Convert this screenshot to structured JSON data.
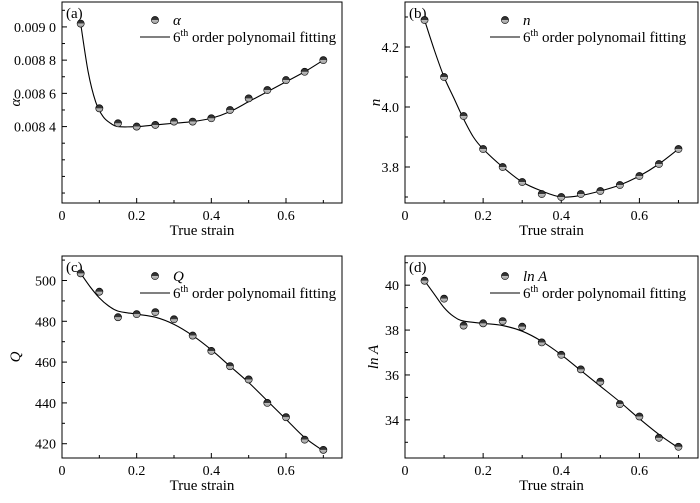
{
  "chart_data": [
    {
      "type": "scatter",
      "panel_label": "(a)",
      "xlabel": "True strain",
      "ylabel": "α",
      "legend": {
        "marker_label": "α",
        "line_label_pre": "6",
        "line_label_sup": "th",
        "line_label_post": " order polynomail fitting"
      },
      "xlim": [
        0,
        0.75
      ],
      "ylim": [
        0.00794,
        0.00915
      ],
      "xticks": [
        0,
        0.2,
        0.4,
        0.6
      ],
      "xtick_labels": [
        "0",
        "0.2",
        "0.4",
        "0.6"
      ],
      "yticks": [
        0.0084,
        0.0086,
        0.0088,
        0.009
      ],
      "ytick_labels": [
        "0.008 4",
        "0.008 6",
        "0.008 8",
        "0.009 0"
      ],
      "x": [
        0.05,
        0.1,
        0.15,
        0.2,
        0.25,
        0.3,
        0.35,
        0.4,
        0.45,
        0.5,
        0.55,
        0.6,
        0.65,
        0.7
      ],
      "values": [
        0.00902,
        0.00851,
        0.00842,
        0.0084,
        0.00841,
        0.00843,
        0.00843,
        0.00845,
        0.0085,
        0.00857,
        0.00862,
        0.00868,
        0.00873,
        0.0088
      ],
      "fit": [
        [
          0.05,
          0.00902
        ],
        [
          0.07,
          0.00873
        ],
        [
          0.09,
          0.00855
        ],
        [
          0.11,
          0.00846
        ],
        [
          0.13,
          0.00842
        ],
        [
          0.15,
          0.0084
        ],
        [
          0.2,
          0.0084
        ],
        [
          0.25,
          0.00841
        ],
        [
          0.3,
          0.00842
        ],
        [
          0.35,
          0.00843
        ],
        [
          0.4,
          0.00845
        ],
        [
          0.45,
          0.00849
        ],
        [
          0.5,
          0.00855
        ],
        [
          0.55,
          0.00861
        ],
        [
          0.6,
          0.00867
        ],
        [
          0.65,
          0.00873
        ],
        [
          0.7,
          0.0088
        ]
      ]
    },
    {
      "type": "scatter",
      "panel_label": "(b)",
      "xlabel": "True strain",
      "ylabel": "n",
      "legend": {
        "marker_label": "n",
        "line_label_pre": "6",
        "line_label_sup": "th",
        "line_label_post": " order polynomail fitting"
      },
      "xlim": [
        0,
        0.75
      ],
      "ylim": [
        3.68,
        4.35
      ],
      "xticks": [
        0,
        0.2,
        0.4,
        0.6
      ],
      "xtick_labels": [
        "0",
        "0.2",
        "0.4",
        "0.6"
      ],
      "yticks": [
        3.8,
        4.0,
        4.2
      ],
      "ytick_labels": [
        "3.8",
        "4.0",
        "4.2"
      ],
      "x": [
        0.05,
        0.1,
        0.15,
        0.2,
        0.25,
        0.3,
        0.35,
        0.4,
        0.45,
        0.5,
        0.55,
        0.6,
        0.65,
        0.7
      ],
      "values": [
        4.29,
        4.1,
        3.97,
        3.86,
        3.8,
        3.75,
        3.71,
        3.7,
        3.71,
        3.72,
        3.74,
        3.77,
        3.81,
        3.86
      ],
      "fit": [
        [
          0.05,
          4.29
        ],
        [
          0.075,
          4.19
        ],
        [
          0.1,
          4.1
        ],
        [
          0.125,
          4.03
        ],
        [
          0.15,
          3.96
        ],
        [
          0.175,
          3.9
        ],
        [
          0.2,
          3.86
        ],
        [
          0.25,
          3.8
        ],
        [
          0.3,
          3.75
        ],
        [
          0.35,
          3.72
        ],
        [
          0.4,
          3.7
        ],
        [
          0.45,
          3.705
        ],
        [
          0.5,
          3.72
        ],
        [
          0.55,
          3.74
        ],
        [
          0.6,
          3.77
        ],
        [
          0.65,
          3.81
        ],
        [
          0.7,
          3.86
        ]
      ]
    },
    {
      "type": "scatter",
      "panel_label": "(c)",
      "xlabel": "True strain",
      "ylabel": "Q",
      "legend": {
        "marker_label": "Q",
        "line_label_pre": "6",
        "line_label_sup": "th",
        "line_label_post": " order polynomail fitting"
      },
      "xlim": [
        0,
        0.75
      ],
      "ylim": [
        413,
        512
      ],
      "xticks": [
        0,
        0.2,
        0.4,
        0.6
      ],
      "xtick_labels": [
        "0",
        "0.2",
        "0.4",
        "0.6"
      ],
      "yticks": [
        420,
        440,
        460,
        480,
        500
      ],
      "ytick_labels": [
        "420",
        "440",
        "460",
        "480",
        "500"
      ],
      "x": [
        0.05,
        0.1,
        0.15,
        0.2,
        0.25,
        0.3,
        0.35,
        0.4,
        0.45,
        0.5,
        0.55,
        0.6,
        0.65,
        0.7
      ],
      "values": [
        503.5,
        494.5,
        482,
        483.5,
        484.5,
        481,
        473,
        465.5,
        458,
        451.5,
        440,
        433,
        422,
        417
      ],
      "fit": [
        [
          0.05,
          503.5
        ],
        [
          0.075,
          497
        ],
        [
          0.1,
          491.5
        ],
        [
          0.125,
          487.5
        ],
        [
          0.15,
          485
        ],
        [
          0.2,
          483.5
        ],
        [
          0.25,
          482
        ],
        [
          0.3,
          478.5
        ],
        [
          0.35,
          473
        ],
        [
          0.4,
          466
        ],
        [
          0.45,
          458
        ],
        [
          0.5,
          450
        ],
        [
          0.55,
          441
        ],
        [
          0.6,
          432
        ],
        [
          0.65,
          423
        ],
        [
          0.7,
          416.5
        ]
      ]
    },
    {
      "type": "scatter",
      "panel_label": "(d)",
      "xlabel": "True strain",
      "ylabel": "ln A",
      "legend": {
        "marker_label": "ln A",
        "line_label_pre": "6",
        "line_label_sup": "th",
        "line_label_post": " order polynomail fitting"
      },
      "xlim": [
        0,
        0.75
      ],
      "ylim": [
        32.3,
        41.3
      ],
      "xticks": [
        0,
        0.2,
        0.4,
        0.6
      ],
      "xtick_labels": [
        "0",
        "0.2",
        "0.4",
        "0.6"
      ],
      "yticks": [
        34,
        36,
        38,
        40
      ],
      "ytick_labels": [
        "34",
        "36",
        "38",
        "40"
      ],
      "x": [
        0.05,
        0.1,
        0.15,
        0.2,
        0.25,
        0.3,
        0.35,
        0.4,
        0.45,
        0.5,
        0.55,
        0.6,
        0.65,
        0.7
      ],
      "values": [
        40.2,
        39.4,
        38.2,
        38.3,
        38.4,
        38.15,
        37.45,
        36.9,
        36.25,
        35.7,
        34.7,
        34.15,
        33.2,
        32.8
      ],
      "fit": [
        [
          0.05,
          40.2
        ],
        [
          0.075,
          39.6
        ],
        [
          0.1,
          39.0
        ],
        [
          0.125,
          38.6
        ],
        [
          0.15,
          38.4
        ],
        [
          0.2,
          38.3
        ],
        [
          0.25,
          38.2
        ],
        [
          0.3,
          37.95
        ],
        [
          0.35,
          37.5
        ],
        [
          0.4,
          36.9
        ],
        [
          0.45,
          36.2
        ],
        [
          0.5,
          35.5
        ],
        [
          0.55,
          34.8
        ],
        [
          0.6,
          34.05
        ],
        [
          0.65,
          33.35
        ],
        [
          0.7,
          32.75
        ]
      ]
    }
  ]
}
